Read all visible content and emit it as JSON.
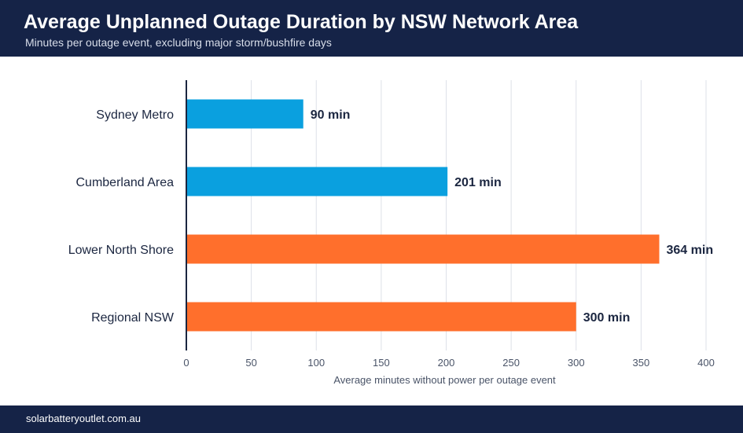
{
  "header": {
    "title": "Average Unplanned Outage Duration by NSW Network Area",
    "subtitle": "Minutes per outage event, excluding major storm/bushfire days"
  },
  "footer": {
    "text": "solarbatteryoutlet.com.au"
  },
  "colors": {
    "header_bg": "#152347",
    "blue": "#0aa0df",
    "orange": "#ff6f2c",
    "label": "#1b2640",
    "grid": "#dde1e8",
    "axis": "#1b2640",
    "tick": "#4a5468"
  },
  "chart_data": {
    "type": "bar",
    "orientation": "horizontal",
    "categories": [
      "Sydney Metro",
      "Cumberland Area",
      "Lower North Shore",
      "Regional NSW"
    ],
    "values": [
      90,
      201,
      364,
      300
    ],
    "value_labels": [
      "90 min",
      "201 min",
      "364 min",
      "300 min"
    ],
    "bar_colors": [
      "#0aa0df",
      "#0aa0df",
      "#ff6f2c",
      "#ff6f2c"
    ],
    "xlabel": "Average minutes without power per outage event",
    "ylabel": "",
    "xlim": [
      0,
      400
    ],
    "xticks": [
      0,
      50,
      100,
      150,
      200,
      250,
      300,
      350,
      400
    ],
    "grid": "vertical"
  }
}
